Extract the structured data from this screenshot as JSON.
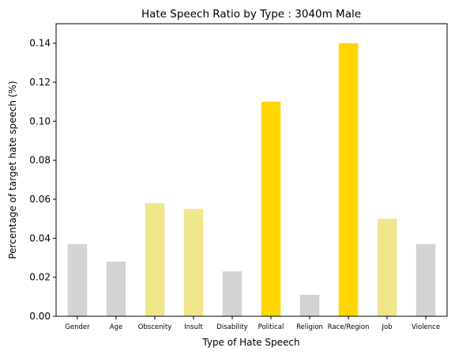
{
  "chart_data": {
    "type": "bar",
    "title": "Hate Speech Ratio by Type : 3040m Male",
    "xlabel": "Type of Hate Speech",
    "ylabel": "Percentage of target hate speech (%)",
    "categories": [
      "Gender",
      "Age",
      "Obscenity",
      "Insult",
      "Disability",
      "Political",
      "Religion",
      "Race/Region",
      "Job",
      "Violence"
    ],
    "values": [
      0.037,
      0.028,
      0.058,
      0.055,
      0.023,
      0.11,
      0.011,
      0.14,
      0.05,
      0.037
    ],
    "colors": [
      "#d3d3d3",
      "#d3d3d3",
      "#f0e68c",
      "#f0e68c",
      "#d3d3d3",
      "#ffd700",
      "#d3d3d3",
      "#ffd700",
      "#f0e68c",
      "#d3d3d3"
    ],
    "ylim": [
      0,
      0.15
    ],
    "yticks": [
      "0.00",
      "0.02",
      "0.04",
      "0.06",
      "0.08",
      "0.10",
      "0.12",
      "0.14"
    ],
    "grid": false
  }
}
